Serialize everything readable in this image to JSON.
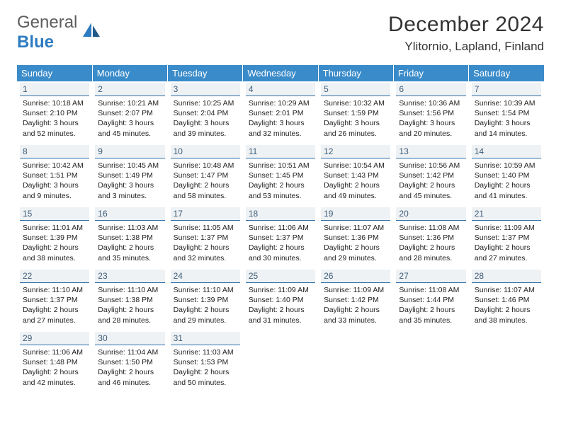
{
  "logo": {
    "line1": "General",
    "line2": "Blue"
  },
  "title": "December 2024",
  "location": "Ylitornio, Lapland, Finland",
  "colors": {
    "header_bg": "#3a8bc9",
    "header_text": "#ffffff",
    "dayrow_bg": "#eef2f5",
    "dayrow_border": "#2d6fa8",
    "logo_gray": "#5d5d5d",
    "logo_blue": "#2d7bc0"
  },
  "weekdays": [
    "Sunday",
    "Monday",
    "Tuesday",
    "Wednesday",
    "Thursday",
    "Friday",
    "Saturday"
  ],
  "weeks": [
    [
      {
        "num": "1",
        "sunrise": "Sunrise: 10:18 AM",
        "sunset": "Sunset: 2:10 PM",
        "daylight": "Daylight: 3 hours and 52 minutes."
      },
      {
        "num": "2",
        "sunrise": "Sunrise: 10:21 AM",
        "sunset": "Sunset: 2:07 PM",
        "daylight": "Daylight: 3 hours and 45 minutes."
      },
      {
        "num": "3",
        "sunrise": "Sunrise: 10:25 AM",
        "sunset": "Sunset: 2:04 PM",
        "daylight": "Daylight: 3 hours and 39 minutes."
      },
      {
        "num": "4",
        "sunrise": "Sunrise: 10:29 AM",
        "sunset": "Sunset: 2:01 PM",
        "daylight": "Daylight: 3 hours and 32 minutes."
      },
      {
        "num": "5",
        "sunrise": "Sunrise: 10:32 AM",
        "sunset": "Sunset: 1:59 PM",
        "daylight": "Daylight: 3 hours and 26 minutes."
      },
      {
        "num": "6",
        "sunrise": "Sunrise: 10:36 AM",
        "sunset": "Sunset: 1:56 PM",
        "daylight": "Daylight: 3 hours and 20 minutes."
      },
      {
        "num": "7",
        "sunrise": "Sunrise: 10:39 AM",
        "sunset": "Sunset: 1:54 PM",
        "daylight": "Daylight: 3 hours and 14 minutes."
      }
    ],
    [
      {
        "num": "8",
        "sunrise": "Sunrise: 10:42 AM",
        "sunset": "Sunset: 1:51 PM",
        "daylight": "Daylight: 3 hours and 9 minutes."
      },
      {
        "num": "9",
        "sunrise": "Sunrise: 10:45 AM",
        "sunset": "Sunset: 1:49 PM",
        "daylight": "Daylight: 3 hours and 3 minutes."
      },
      {
        "num": "10",
        "sunrise": "Sunrise: 10:48 AM",
        "sunset": "Sunset: 1:47 PM",
        "daylight": "Daylight: 2 hours and 58 minutes."
      },
      {
        "num": "11",
        "sunrise": "Sunrise: 10:51 AM",
        "sunset": "Sunset: 1:45 PM",
        "daylight": "Daylight: 2 hours and 53 minutes."
      },
      {
        "num": "12",
        "sunrise": "Sunrise: 10:54 AM",
        "sunset": "Sunset: 1:43 PM",
        "daylight": "Daylight: 2 hours and 49 minutes."
      },
      {
        "num": "13",
        "sunrise": "Sunrise: 10:56 AM",
        "sunset": "Sunset: 1:42 PM",
        "daylight": "Daylight: 2 hours and 45 minutes."
      },
      {
        "num": "14",
        "sunrise": "Sunrise: 10:59 AM",
        "sunset": "Sunset: 1:40 PM",
        "daylight": "Daylight: 2 hours and 41 minutes."
      }
    ],
    [
      {
        "num": "15",
        "sunrise": "Sunrise: 11:01 AM",
        "sunset": "Sunset: 1:39 PM",
        "daylight": "Daylight: 2 hours and 38 minutes."
      },
      {
        "num": "16",
        "sunrise": "Sunrise: 11:03 AM",
        "sunset": "Sunset: 1:38 PM",
        "daylight": "Daylight: 2 hours and 35 minutes."
      },
      {
        "num": "17",
        "sunrise": "Sunrise: 11:05 AM",
        "sunset": "Sunset: 1:37 PM",
        "daylight": "Daylight: 2 hours and 32 minutes."
      },
      {
        "num": "18",
        "sunrise": "Sunrise: 11:06 AM",
        "sunset": "Sunset: 1:37 PM",
        "daylight": "Daylight: 2 hours and 30 minutes."
      },
      {
        "num": "19",
        "sunrise": "Sunrise: 11:07 AM",
        "sunset": "Sunset: 1:36 PM",
        "daylight": "Daylight: 2 hours and 29 minutes."
      },
      {
        "num": "20",
        "sunrise": "Sunrise: 11:08 AM",
        "sunset": "Sunset: 1:36 PM",
        "daylight": "Daylight: 2 hours and 28 minutes."
      },
      {
        "num": "21",
        "sunrise": "Sunrise: 11:09 AM",
        "sunset": "Sunset: 1:37 PM",
        "daylight": "Daylight: 2 hours and 27 minutes."
      }
    ],
    [
      {
        "num": "22",
        "sunrise": "Sunrise: 11:10 AM",
        "sunset": "Sunset: 1:37 PM",
        "daylight": "Daylight: 2 hours and 27 minutes."
      },
      {
        "num": "23",
        "sunrise": "Sunrise: 11:10 AM",
        "sunset": "Sunset: 1:38 PM",
        "daylight": "Daylight: 2 hours and 28 minutes."
      },
      {
        "num": "24",
        "sunrise": "Sunrise: 11:10 AM",
        "sunset": "Sunset: 1:39 PM",
        "daylight": "Daylight: 2 hours and 29 minutes."
      },
      {
        "num": "25",
        "sunrise": "Sunrise: 11:09 AM",
        "sunset": "Sunset: 1:40 PM",
        "daylight": "Daylight: 2 hours and 31 minutes."
      },
      {
        "num": "26",
        "sunrise": "Sunrise: 11:09 AM",
        "sunset": "Sunset: 1:42 PM",
        "daylight": "Daylight: 2 hours and 33 minutes."
      },
      {
        "num": "27",
        "sunrise": "Sunrise: 11:08 AM",
        "sunset": "Sunset: 1:44 PM",
        "daylight": "Daylight: 2 hours and 35 minutes."
      },
      {
        "num": "28",
        "sunrise": "Sunrise: 11:07 AM",
        "sunset": "Sunset: 1:46 PM",
        "daylight": "Daylight: 2 hours and 38 minutes."
      }
    ],
    [
      {
        "num": "29",
        "sunrise": "Sunrise: 11:06 AM",
        "sunset": "Sunset: 1:48 PM",
        "daylight": "Daylight: 2 hours and 42 minutes."
      },
      {
        "num": "30",
        "sunrise": "Sunrise: 11:04 AM",
        "sunset": "Sunset: 1:50 PM",
        "daylight": "Daylight: 2 hours and 46 minutes."
      },
      {
        "num": "31",
        "sunrise": "Sunrise: 11:03 AM",
        "sunset": "Sunset: 1:53 PM",
        "daylight": "Daylight: 2 hours and 50 minutes."
      },
      null,
      null,
      null,
      null
    ]
  ]
}
